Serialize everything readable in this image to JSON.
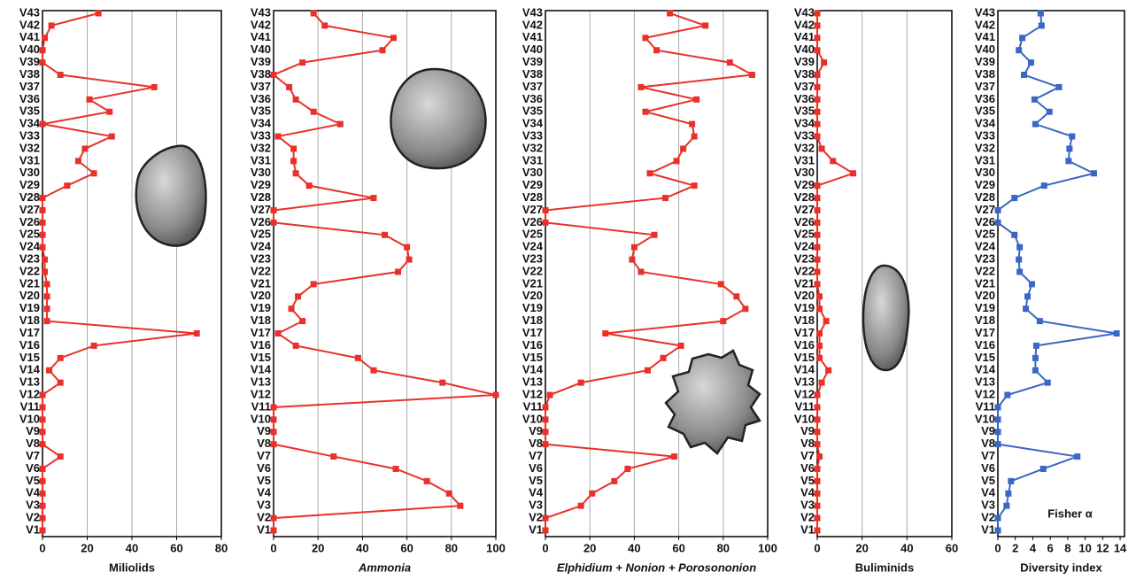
{
  "chart_data": [
    {
      "type": "line",
      "xlabel": "Miliolids",
      "xlabel_italic": false,
      "color": "#e8312a",
      "categories": [
        "V1",
        "V2",
        "V3",
        "V4",
        "V5",
        "V6",
        "V7",
        "V8",
        "V9",
        "V10",
        "V11",
        "V12",
        "V13",
        "V14",
        "V15",
        "V16",
        "V17",
        "V18",
        "V19",
        "V20",
        "V21",
        "V22",
        "V23",
        "V24",
        "V25",
        "V26",
        "V27",
        "V28",
        "V29",
        "V30",
        "V31",
        "V32",
        "V33",
        "V34",
        "V35",
        "V36",
        "V37",
        "V38",
        "V39",
        "V40",
        "V41",
        "V42",
        "V43"
      ],
      "values": [
        0,
        0,
        0,
        0,
        0,
        0,
        8,
        0,
        0,
        0,
        0,
        0,
        8,
        3,
        8,
        23,
        69,
        2,
        2,
        2,
        2,
        1,
        1,
        0,
        0,
        0,
        0,
        0,
        11,
        23,
        16,
        19,
        31,
        0,
        30,
        21,
        50,
        8,
        0,
        0,
        1,
        4,
        25
      ],
      "xlim": [
        0,
        80
      ],
      "xticks": [
        0,
        20,
        40,
        60,
        80
      ],
      "grid": true
    },
    {
      "type": "line",
      "xlabel": "Ammonia",
      "xlabel_italic": true,
      "color": "#e8312a",
      "categories": [
        "V1",
        "V2",
        "V3",
        "V4",
        "V5",
        "V6",
        "V7",
        "V8",
        "V9",
        "V10",
        "V11",
        "V12",
        "V13",
        "V14",
        "V15",
        "V16",
        "V17",
        "V18",
        "V19",
        "V20",
        "V21",
        "V22",
        "V23",
        "V24",
        "V25",
        "V26",
        "V27",
        "V28",
        "V29",
        "V30",
        "V31",
        "V32",
        "V33",
        "V34",
        "V35",
        "V36",
        "V37",
        "V38",
        "V39",
        "V40",
        "V41",
        "V42",
        "V43"
      ],
      "values": [
        0,
        0,
        84,
        79,
        69,
        55,
        27,
        0,
        0,
        0,
        0,
        100,
        76,
        45,
        38,
        10,
        2,
        13,
        8,
        11,
        18,
        56,
        61,
        60,
        50,
        0,
        0,
        45,
        16,
        10,
        9,
        9,
        2,
        30,
        18,
        10,
        7,
        0,
        13,
        49,
        54,
        23,
        18
      ],
      "xlim": [
        0,
        100
      ],
      "xticks": [
        0,
        20,
        40,
        60,
        80,
        100
      ],
      "grid": true
    },
    {
      "type": "line",
      "xlabel": "Elphidium + Nonion + Porosononion",
      "xlabel_italic": true,
      "color": "#e8312a",
      "categories": [
        "V1",
        "V2",
        "V3",
        "V4",
        "V5",
        "V6",
        "V7",
        "V8",
        "V9",
        "V10",
        "V11",
        "V12",
        "V13",
        "V14",
        "V15",
        "V16",
        "V17",
        "V18",
        "V19",
        "V20",
        "V21",
        "V22",
        "V23",
        "V24",
        "V25",
        "V26",
        "V27",
        "V28",
        "V29",
        "V30",
        "V31",
        "V32",
        "V33",
        "V34",
        "V35",
        "V36",
        "V37",
        "V38",
        "V39",
        "V40",
        "V41",
        "V42",
        "V43"
      ],
      "values": [
        0,
        0,
        16,
        21,
        31,
        37,
        58,
        0,
        0,
        0,
        0,
        2,
        16,
        46,
        53,
        61,
        27,
        80,
        90,
        86,
        79,
        43,
        39,
        40,
        49,
        0,
        0,
        54,
        67,
        47,
        59,
        62,
        67,
        66,
        45,
        68,
        43,
        93,
        83,
        50,
        45,
        72,
        56
      ],
      "xlim": [
        0,
        100
      ],
      "xticks": [
        0,
        20,
        40,
        60,
        80,
        100
      ],
      "grid": true
    },
    {
      "type": "line",
      "xlabel": "Buliminids",
      "xlabel_italic": false,
      "color": "#e8312a",
      "categories": [
        "V1",
        "V2",
        "V3",
        "V4",
        "V5",
        "V6",
        "V7",
        "V8",
        "V9",
        "V10",
        "V11",
        "V12",
        "V13",
        "V14",
        "V15",
        "V16",
        "V17",
        "V18",
        "V19",
        "V20",
        "V21",
        "V22",
        "V23",
        "V24",
        "V25",
        "V26",
        "V27",
        "V28",
        "V29",
        "V30",
        "V31",
        "V32",
        "V33",
        "V34",
        "V35",
        "V36",
        "V37",
        "V38",
        "V39",
        "V40",
        "V41",
        "V42",
        "V43"
      ],
      "values": [
        0,
        0,
        0,
        0,
        0,
        0,
        1,
        0,
        0,
        0,
        0,
        0,
        2,
        5,
        1,
        1,
        1,
        4,
        1,
        1,
        0,
        0,
        0,
        0,
        0,
        0,
        0,
        0,
        0,
        16,
        7,
        2,
        0,
        0,
        0,
        0,
        0,
        0,
        3,
        0,
        0,
        0,
        0
      ],
      "xlim": [
        0,
        60
      ],
      "xticks": [
        0,
        20,
        40,
        60
      ],
      "grid": true
    },
    {
      "type": "line",
      "xlabel": "Diversity index",
      "xlabel_italic": false,
      "annotation": "Fisher α",
      "color": "#3a66c4",
      "categories": [
        "V1",
        "V2",
        "V3",
        "V4",
        "V5",
        "V6",
        "V7",
        "V8",
        "V9",
        "V10",
        "V11",
        "V12",
        "V13",
        "V14",
        "V15",
        "V16",
        "V17",
        "V18",
        "V19",
        "V20",
        "V21",
        "V22",
        "V23",
        "V24",
        "V25",
        "V26",
        "V27",
        "V28",
        "V29",
        "V30",
        "V31",
        "V32",
        "V33",
        "V34",
        "V35",
        "V36",
        "V37",
        "V38",
        "V39",
        "V40",
        "V41",
        "V42",
        "V43"
      ],
      "values": [
        0,
        0,
        1,
        1.2,
        1.5,
        5.2,
        9.1,
        0,
        0,
        0,
        0,
        1.1,
        5.7,
        4.3,
        4.3,
        4.4,
        13.6,
        4.8,
        3.2,
        3.4,
        3.9,
        2.5,
        2.4,
        2.5,
        1.9,
        0,
        0,
        1.9,
        5.3,
        11,
        8.1,
        8.2,
        8.5,
        4.3,
        5.9,
        4.2,
        7,
        3,
        3.8,
        2.4,
        2.8,
        5,
        4.9
      ],
      "xlim": [
        0,
        14.5
      ],
      "xticks": [
        0,
        2,
        4,
        6,
        8,
        10,
        12,
        14
      ],
      "grid": false
    }
  ]
}
